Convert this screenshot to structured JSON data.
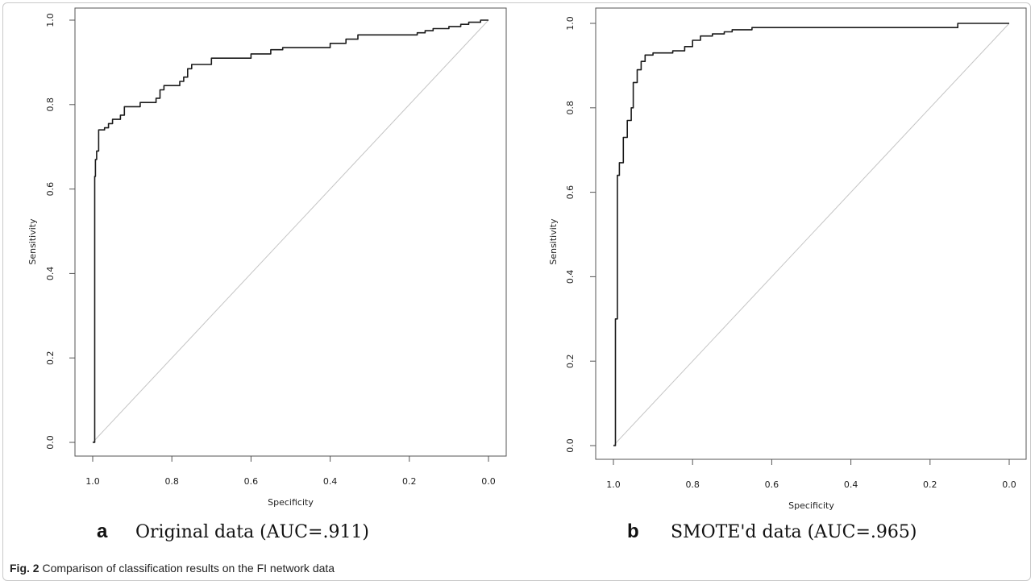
{
  "caption": {
    "label": "Fig. 2",
    "text": "Comparison of classification results on the FI network data"
  },
  "chart_data": [
    {
      "type": "line",
      "panel_letter": "a",
      "subtitle": "Original data (AUC=.911)",
      "xlabel": "Specificity",
      "ylabel": "Sensitivity",
      "xlim": [
        1.0,
        0.0
      ],
      "ylim": [
        0.0,
        1.0
      ],
      "x_reversed": true,
      "xticks": [
        "1.0",
        "0.8",
        "0.6",
        "0.4",
        "0.2",
        "0.0"
      ],
      "yticks": [
        "0.0",
        "0.2",
        "0.4",
        "0.6",
        "0.8",
        "1.0"
      ],
      "diagonal": true,
      "series": [
        {
          "x": [
            1.0,
            0.995,
            0.993,
            0.99,
            0.985,
            0.97,
            0.96,
            0.95,
            0.93,
            0.92,
            0.9,
            0.88,
            0.86,
            0.84,
            0.83,
            0.82,
            0.8,
            0.78,
            0.77,
            0.76,
            0.75,
            0.73,
            0.7,
            0.65,
            0.6,
            0.55,
            0.52,
            0.45,
            0.42,
            0.4,
            0.36,
            0.33,
            0.3,
            0.25,
            0.2,
            0.18,
            0.16,
            0.14,
            0.1,
            0.07,
            0.05,
            0.02,
            0.0
          ],
          "y": [
            0.0,
            0.63,
            0.67,
            0.69,
            0.74,
            0.745,
            0.755,
            0.765,
            0.775,
            0.795,
            0.795,
            0.805,
            0.805,
            0.815,
            0.835,
            0.845,
            0.845,
            0.855,
            0.865,
            0.885,
            0.895,
            0.895,
            0.91,
            0.91,
            0.92,
            0.93,
            0.935,
            0.935,
            0.935,
            0.945,
            0.955,
            0.965,
            0.965,
            0.965,
            0.965,
            0.97,
            0.975,
            0.98,
            0.985,
            0.99,
            0.995,
            1.0,
            1.0
          ]
        }
      ]
    },
    {
      "type": "line",
      "panel_letter": "b",
      "subtitle": "SMOTE'd data (AUC=.965)",
      "xlabel": "Specificity",
      "ylabel": "Sensitivity",
      "xlim": [
        1.0,
        0.0
      ],
      "ylim": [
        0.0,
        1.0
      ],
      "x_reversed": true,
      "xticks": [
        "1.0",
        "0.8",
        "0.6",
        "0.4",
        "0.2",
        "0.0"
      ],
      "yticks": [
        "0.0",
        "0.2",
        "0.4",
        "0.6",
        "0.8",
        "1.0"
      ],
      "diagonal": true,
      "series": [
        {
          "x": [
            1.0,
            0.995,
            0.99,
            0.985,
            0.975,
            0.965,
            0.955,
            0.95,
            0.94,
            0.93,
            0.92,
            0.9,
            0.88,
            0.85,
            0.82,
            0.8,
            0.78,
            0.75,
            0.72,
            0.7,
            0.65,
            0.6,
            0.5,
            0.4,
            0.3,
            0.2,
            0.14,
            0.13,
            0.1,
            0.05,
            0.0
          ],
          "y": [
            0.0,
            0.3,
            0.64,
            0.67,
            0.73,
            0.77,
            0.8,
            0.86,
            0.89,
            0.91,
            0.925,
            0.93,
            0.93,
            0.935,
            0.945,
            0.96,
            0.97,
            0.975,
            0.98,
            0.985,
            0.99,
            0.99,
            0.99,
            0.99,
            0.99,
            0.99,
            0.99,
            1.0,
            1.0,
            1.0,
            1.0
          ]
        }
      ]
    }
  ]
}
